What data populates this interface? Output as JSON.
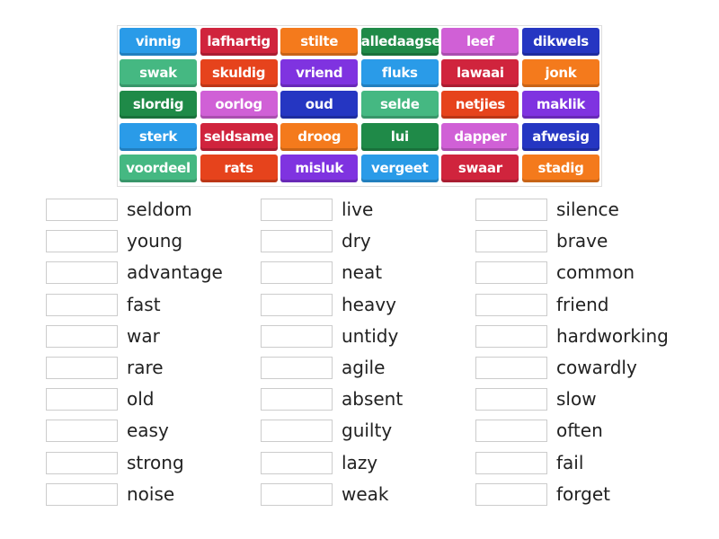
{
  "palette": [
    "#2a9be8",
    "#d0243d",
    "#f47a1c",
    "#1f8a48",
    "#d060d6",
    "#2536c2",
    "#45b882",
    "#e6431c",
    "#7f33e0"
  ],
  "tiles": [
    [
      "vinnig",
      "lafhartig",
      "stilte",
      "alledaagse",
      "leef",
      "dikwels"
    ],
    [
      "swak",
      "skuldig",
      "vriend",
      "fluks",
      "lawaai",
      "jonk"
    ],
    [
      "slordig",
      "oorlog",
      "oud",
      "selde",
      "netjies",
      "maklik"
    ],
    [
      "sterk",
      "seldsame",
      "droog",
      "lui",
      "dapper",
      "afwesig"
    ],
    [
      "voordeel",
      "rats",
      "misluk",
      "vergeet",
      "swaar",
      "stadig"
    ]
  ],
  "columns": [
    [
      "seldom",
      "young",
      "advantage",
      "fast",
      "war",
      "rare",
      "old",
      "easy",
      "strong",
      "noise"
    ],
    [
      "live",
      "dry",
      "neat",
      "heavy",
      "untidy",
      "agile",
      "absent",
      "guilty",
      "lazy",
      "weak"
    ],
    [
      "silence",
      "brave",
      "common",
      "friend",
      "hardworking",
      "cowardly",
      "slow",
      "often",
      "fail",
      "forget"
    ]
  ]
}
